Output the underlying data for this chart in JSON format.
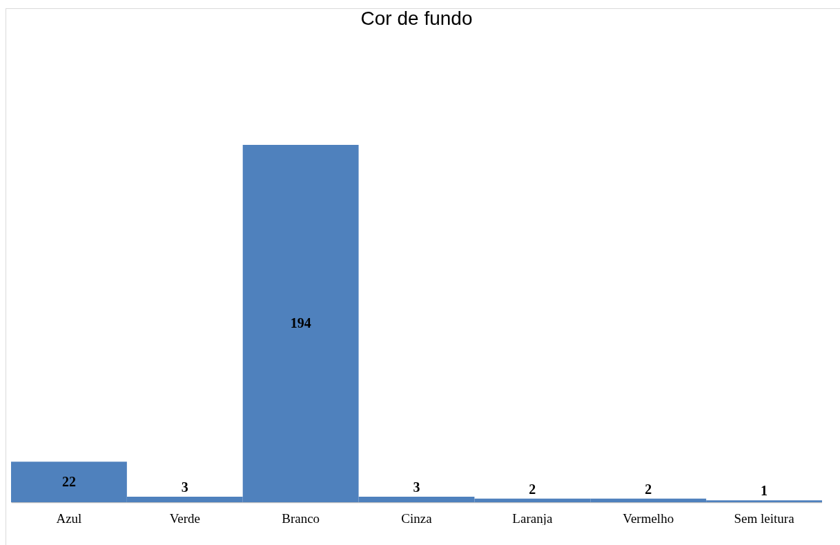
{
  "chart_data": {
    "type": "bar",
    "title": "Cor de fundo",
    "categories": [
      "Azul",
      "Verde",
      "Branco",
      "Cinza",
      "Laranja",
      "Vermelho",
      "Sem leitura"
    ],
    "values": [
      22,
      3,
      194,
      3,
      2,
      2,
      1
    ],
    "color": "#4f81bd",
    "data_labels": true
  }
}
